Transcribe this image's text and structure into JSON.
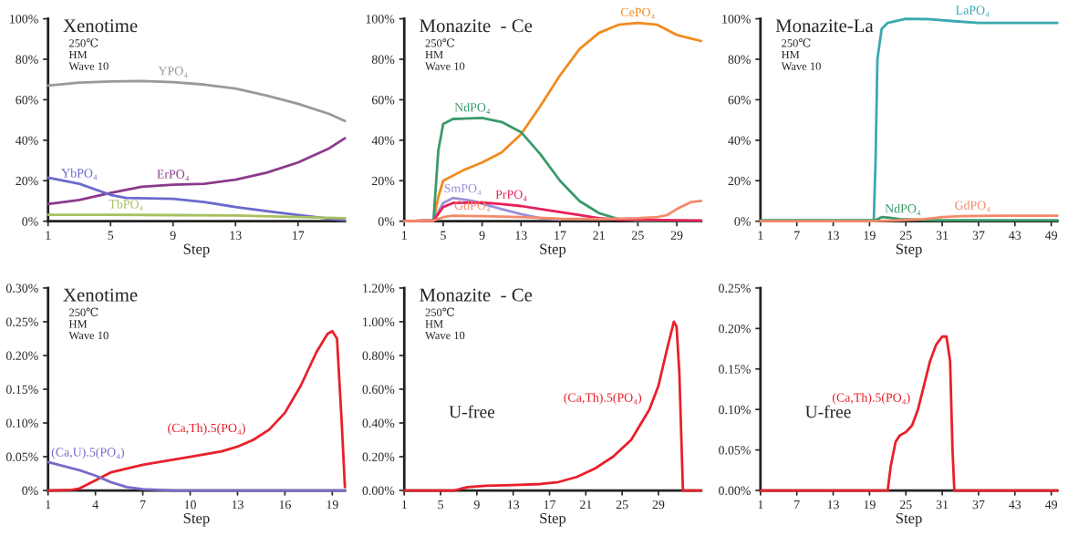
{
  "chart_data": [
    {
      "type": "line",
      "title": "Xenotime",
      "subtitle": "250℃\nHM\nWave 10",
      "xlabel": "Step",
      "xlim": [
        1,
        20
      ],
      "xticks": [
        1,
        5,
        9,
        13,
        17
      ],
      "ylim": [
        0,
        100
      ],
      "yticks": [
        {
          "value": 0,
          "label": "0%"
        },
        {
          "value": 20,
          "label": "20%"
        },
        {
          "value": 40,
          "label": "40%"
        },
        {
          "value": 60,
          "label": "60%"
        },
        {
          "value": 80,
          "label": "80%"
        },
        {
          "value": 100,
          "label": "100%"
        }
      ],
      "series": [
        {
          "color": "#999999",
          "x": [
            1,
            3,
            5,
            7,
            9,
            11,
            13,
            15,
            17,
            19,
            20
          ],
          "values": [
            67,
            68.5,
            69,
            69.2,
            68.7,
            67.5,
            65.5,
            62,
            58,
            53,
            49.5
          ]
        },
        {
          "color": "#8b3a8b",
          "x": [
            1,
            3,
            5,
            7,
            9,
            11,
            13,
            15,
            17,
            19,
            20
          ],
          "values": [
            8.5,
            10.5,
            14,
            17,
            18,
            18.5,
            20.5,
            24,
            29,
            36,
            41
          ]
        },
        {
          "color": "#6a6acd",
          "x": [
            1,
            3,
            5,
            6,
            9,
            11,
            13,
            15,
            17,
            19,
            20
          ],
          "values": [
            21.5,
            18.5,
            13,
            11.5,
            11,
            9.5,
            7,
            5,
            3,
            1.2,
            0.5
          ]
        },
        {
          "color": "#a8c060",
          "x": [
            1,
            5,
            9,
            13,
            17,
            20
          ],
          "values": [
            3.2,
            3.2,
            3,
            2.8,
            2,
            1.5
          ]
        }
      ],
      "annotations": [
        {
          "text": "YPO₄",
          "x": 9,
          "y": 69
        },
        {
          "text": "ErPO₄",
          "x": 9,
          "y": 18
        },
        {
          "text": "YbPO₄",
          "x": 3,
          "y": 18.5
        },
        {
          "text": "TbPO₄",
          "x": 6,
          "y": 3.2
        }
      ],
      "grid": false
    },
    {
      "type": "line",
      "title": "Monazite  - Ce",
      "subtitle": "250℃\nHM\nWave 10",
      "xlabel": "Step",
      "xlim": [
        1,
        31.5
      ],
      "xticks": [
        1,
        5,
        9,
        13,
        17,
        21,
        25,
        29
      ],
      "ylim": [
        0,
        100
      ],
      "yticks": [
        {
          "value": 0,
          "label": "0%"
        },
        {
          "value": 20,
          "label": "20%"
        },
        {
          "value": 40,
          "label": "40%"
        },
        {
          "value": 60,
          "label": "60%"
        },
        {
          "value": 80,
          "label": "80%"
        },
        {
          "value": 100,
          "label": "100%"
        }
      ],
      "series": [
        {
          "color": "#f28a1e",
          "x": [
            1,
            4,
            4.5,
            5,
            7,
            9,
            11,
            13,
            15,
            17,
            19,
            21,
            23,
            25,
            27,
            29,
            31.5
          ],
          "values": [
            0,
            0.3,
            12,
            20,
            25,
            29,
            34,
            43,
            57,
            72,
            85,
            93,
            97,
            98,
            97,
            92,
            89
          ]
        },
        {
          "color": "#3a9a6a",
          "x": [
            1,
            4,
            4.5,
            5,
            6,
            9,
            11,
            13,
            15,
            17,
            19,
            21,
            23,
            25,
            31.5
          ],
          "values": [
            0,
            0.3,
            35,
            48,
            50.5,
            51,
            49,
            44,
            33,
            20,
            10,
            4,
            1,
            0.3,
            0.2
          ]
        },
        {
          "color": "#9a90d8",
          "x": [
            1,
            4,
            5,
            6,
            8,
            11,
            13,
            15,
            17
          ],
          "values": [
            0,
            0.3,
            9,
            11.5,
            10,
            6,
            3.5,
            1.5,
            0.8
          ]
        },
        {
          "color": "#e8205a",
          "x": [
            1,
            4,
            5,
            6,
            9,
            11,
            13,
            15,
            17,
            19,
            21,
            23,
            31.5
          ],
          "values": [
            0,
            0.3,
            7,
            9,
            9.2,
            8.5,
            7.5,
            6,
            4.5,
            3,
            1.5,
            0.8,
            0.3
          ]
        },
        {
          "color": "#f48a6a",
          "x": [
            1,
            4,
            5,
            6,
            9,
            13,
            17,
            21,
            25,
            27,
            28,
            29,
            30.5,
            31.5
          ],
          "values": [
            0,
            0.3,
            2,
            2.7,
            2.5,
            2,
            1.2,
            1,
            1.5,
            2,
            3,
            6,
            9.5,
            10
          ]
        }
      ],
      "annotations": [
        {
          "text": "CePO₄",
          "x": 25,
          "y": 98
        },
        {
          "text": "NdPO₄",
          "x": 8,
          "y": 51
        },
        {
          "text": "SmPO₄",
          "x": 7,
          "y": 11
        },
        {
          "text": "PrPO₄",
          "x": 12,
          "y": 8
        },
        {
          "text": "GdPO₄",
          "x": 8,
          "y": 2.6
        }
      ],
      "grid": false
    },
    {
      "type": "line",
      "title": "Monazite-La",
      "subtitle": "250℃\nHM\nWave 10",
      "xlabel": "Step",
      "xlim": [
        1,
        50
      ],
      "xticks": [
        1,
        7,
        13,
        19,
        25,
        31,
        37,
        43,
        49
      ],
      "ylim": [
        0,
        100
      ],
      "yticks": [
        {
          "value": 0,
          "label": "0%"
        },
        {
          "value": 20,
          "label": "20%"
        },
        {
          "value": 40,
          "label": "40%"
        },
        {
          "value": 60,
          "label": "60%"
        },
        {
          "value": 80,
          "label": "80%"
        },
        {
          "value": 100,
          "label": "100%"
        }
      ],
      "series": [
        {
          "color": "#3aa8b0",
          "x": [
            1,
            19.7,
            20,
            20.3,
            21,
            22,
            25,
            29,
            33,
            37,
            43,
            50
          ],
          "values": [
            0,
            0,
            30,
            80,
            95,
            98,
            100,
            99.8,
            98.8,
            98,
            98,
            98
          ]
        },
        {
          "color": "#3a9a6a",
          "x": [
            1,
            20,
            21,
            22,
            24,
            30,
            50
          ],
          "values": [
            0.5,
            0.5,
            2,
            1.8,
            1,
            0.5,
            0.5
          ]
        },
        {
          "color": "#f48a6a",
          "x": [
            1,
            20,
            24,
            28,
            31,
            34,
            40,
            50
          ],
          "values": [
            0,
            0,
            0.5,
            1,
            2,
            2.5,
            2.7,
            2.7
          ]
        }
      ],
      "annotations": [
        {
          "text": "LaPO₄",
          "x": 36,
          "y": 99
        },
        {
          "text": "NdPO₄",
          "x": 24.5,
          "y": 1
        },
        {
          "text": "GdPO₄",
          "x": 36,
          "y": 2.6
        }
      ],
      "grid": false
    },
    {
      "type": "line",
      "title": "Xenotime",
      "subtitle": "250℃\nHM\nWave 10",
      "xlabel": "Step",
      "xlim": [
        1,
        19.8
      ],
      "xticks": [
        1,
        4,
        7,
        10,
        13,
        16,
        19
      ],
      "ylim": [
        0,
        0.3
      ],
      "yticks": [
        {
          "value": 0,
          "label": "0%"
        },
        {
          "value": 0.05,
          "label": "0.05%"
        },
        {
          "value": 0.1,
          "label": "0.10%"
        },
        {
          "value": 0.15,
          "label": "0.15%"
        },
        {
          "value": 0.2,
          "label": "0.20%"
        },
        {
          "value": 0.25,
          "label": "0.25%"
        },
        {
          "value": 0.3,
          "label": "0.30%"
        }
      ],
      "series": [
        {
          "color": "#e8202a",
          "x": [
            1,
            2.5,
            3,
            4,
            5,
            7,
            10,
            12,
            13,
            14,
            15,
            16,
            17,
            18,
            18.7,
            19,
            19.3,
            19.6,
            19.8
          ],
          "values": [
            0,
            0.001,
            0.003,
            0.015,
            0.027,
            0.038,
            0.05,
            0.058,
            0.065,
            0.075,
            0.09,
            0.115,
            0.155,
            0.205,
            0.232,
            0.236,
            0.225,
            0.1,
            0.005
          ]
        },
        {
          "color": "#7a6ac8",
          "x": [
            1,
            3,
            4,
            5,
            6,
            7,
            9,
            19.8
          ],
          "values": [
            0.042,
            0.03,
            0.022,
            0.012,
            0.005,
            0.002,
            0,
            0
          ]
        }
      ],
      "annotations": [
        {
          "text": "(Ca,Th).5(PO₄)",
          "x": 14,
          "y": 0.075
        },
        {
          "text": "(Ca,U).5(PO₄)",
          "x": 1.2,
          "y": 0.041
        }
      ],
      "grid": false
    },
    {
      "type": "line",
      "title": "Monazite  - Ce",
      "subtitle": "250℃\nHM\nWave 10",
      "xlabel": "Step",
      "xlim": [
        1,
        33.7
      ],
      "xticks": [
        1,
        5,
        9,
        13,
        17,
        21,
        25,
        29
      ],
      "ylim": [
        0,
        1.2
      ],
      "yticks": [
        {
          "value": 0,
          "label": "0.00%"
        },
        {
          "value": 0.2,
          "label": "0.20%"
        },
        {
          "value": 0.4,
          "label": "0.40%"
        },
        {
          "value": 0.6,
          "label": "0.60%"
        },
        {
          "value": 0.8,
          "label": "0.80%"
        },
        {
          "value": 1.0,
          "label": "1.00%"
        },
        {
          "value": 1.2,
          "label": "1.20%"
        }
      ],
      "series": [
        {
          "color": "#e8202a",
          "x": [
            1,
            6.5,
            8,
            10,
            13,
            16,
            18,
            20,
            22,
            24,
            26,
            28,
            29,
            30,
            30.7,
            31,
            31.3,
            31.7,
            33.7
          ],
          "values": [
            0,
            0,
            0.02,
            0.028,
            0.032,
            0.038,
            0.05,
            0.08,
            0.13,
            0.2,
            0.3,
            0.48,
            0.62,
            0.85,
            1.0,
            0.97,
            0.7,
            0,
            0
          ]
        }
      ],
      "annotations": [
        "U-free",
        {
          "text": "(Ca,Th).5(PO₄)",
          "x": 28,
          "y": 0.48
        }
      ],
      "grid": false
    },
    {
      "type": "line",
      "xlabel": "Step",
      "xlim": [
        1,
        50
      ],
      "xticks": [
        1,
        7,
        13,
        19,
        25,
        31,
        37,
        43,
        49
      ],
      "ylim": [
        0,
        0.25
      ],
      "yticks": [
        {
          "value": 0,
          "label": "0.00%"
        },
        {
          "value": 0.05,
          "label": "0.05%"
        },
        {
          "value": 0.1,
          "label": "0.10%"
        },
        {
          "value": 0.15,
          "label": "0.15%"
        },
        {
          "value": 0.2,
          "label": "0.20%"
        },
        {
          "value": 0.25,
          "label": "0.25%"
        }
      ],
      "series": [
        {
          "color": "#e8202a",
          "x": [
            1,
            22,
            22.5,
            23.3,
            24,
            25,
            26,
            27,
            28,
            29,
            30,
            31,
            31.7,
            32.3,
            32.7,
            33,
            50
          ],
          "values": [
            0,
            0,
            0.03,
            0.06,
            0.068,
            0.072,
            0.08,
            0.1,
            0.13,
            0.16,
            0.18,
            0.19,
            0.19,
            0.16,
            0.05,
            0,
            0
          ]
        }
      ],
      "annotations": [
        "U-free",
        {
          "text": "(Ca,Th).5(PO₄)",
          "x": 27,
          "y": 0.1
        }
      ],
      "grid": false
    }
  ]
}
